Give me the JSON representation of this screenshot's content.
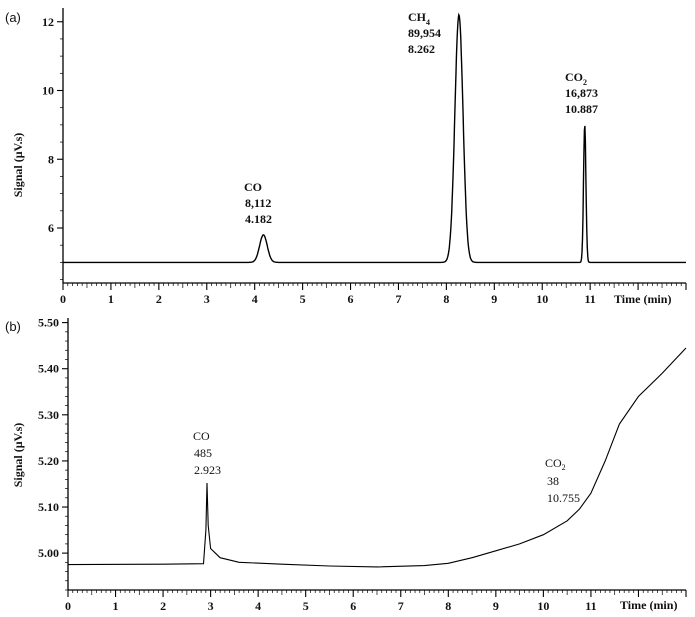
{
  "chart_data": [
    {
      "panel_label": "(a)",
      "type": "line",
      "xlabel": "Time (min)",
      "ylabel": "Signal (μV.s)",
      "xlim": [
        0,
        13
      ],
      "ylim": [
        4.4,
        12.4
      ],
      "x_ticks": [
        "0",
        "1",
        "2",
        "3",
        "4",
        "5",
        "6",
        "7",
        "8",
        "9",
        "10",
        "11"
      ],
      "y_ticks": [
        "6",
        "8",
        "10",
        "12"
      ],
      "baseline": 5.0,
      "peaks": [
        {
          "x": 4.182,
          "y": 5.8,
          "width": 0.08
        },
        {
          "x": 8.262,
          "y": 12.2,
          "width": 0.085
        },
        {
          "x": 10.887,
          "y": 9.0,
          "width": 0.025
        }
      ],
      "annotations": [
        {
          "name": "CO",
          "sub": "",
          "area": "8,112",
          "time": "4.182"
        },
        {
          "name": "CH",
          "sub": "4",
          "area": "89,954",
          "time": "8.262"
        },
        {
          "name": "CO",
          "sub": "2",
          "area": "16,873",
          "time": "10.887"
        }
      ]
    },
    {
      "panel_label": "(b)",
      "type": "line",
      "xlabel": "Time (min)",
      "ylabel": "Signal (μV.s)",
      "xlim": [
        0,
        13
      ],
      "ylim": [
        4.92,
        5.51
      ],
      "x_ticks": [
        "0",
        "1",
        "2",
        "3",
        "4",
        "5",
        "6",
        "7",
        "8",
        "9",
        "10",
        "11"
      ],
      "y_ticks": [
        "5.00",
        "5.10",
        "5.20",
        "5.30",
        "5.40",
        "5.50"
      ],
      "line": [
        [
          0,
          4.975
        ],
        [
          2.0,
          4.976
        ],
        [
          2.85,
          4.977
        ],
        [
          2.9,
          5.05
        ],
        [
          2.923,
          5.152
        ],
        [
          2.95,
          5.06
        ],
        [
          3.0,
          5.01
        ],
        [
          3.2,
          4.99
        ],
        [
          3.6,
          4.98
        ],
        [
          4.5,
          4.976
        ],
        [
          5.5,
          4.972
        ],
        [
          6.5,
          4.97
        ],
        [
          7.5,
          4.973
        ],
        [
          8.0,
          4.978
        ],
        [
          8.5,
          4.99
        ],
        [
          9.0,
          5.005
        ],
        [
          9.5,
          5.02
        ],
        [
          10.0,
          5.04
        ],
        [
          10.5,
          5.07
        ],
        [
          10.755,
          5.095
        ],
        [
          11.0,
          5.13
        ],
        [
          11.3,
          5.2
        ],
        [
          11.6,
          5.28
        ],
        [
          12.0,
          5.34
        ],
        [
          12.5,
          5.39
        ],
        [
          13.0,
          5.445
        ]
      ],
      "annotations": [
        {
          "name": "CO",
          "sub": "",
          "area": "485",
          "time": "2.923"
        },
        {
          "name": "CO",
          "sub": "2",
          "area": "38",
          "time": "10.755"
        }
      ]
    }
  ]
}
